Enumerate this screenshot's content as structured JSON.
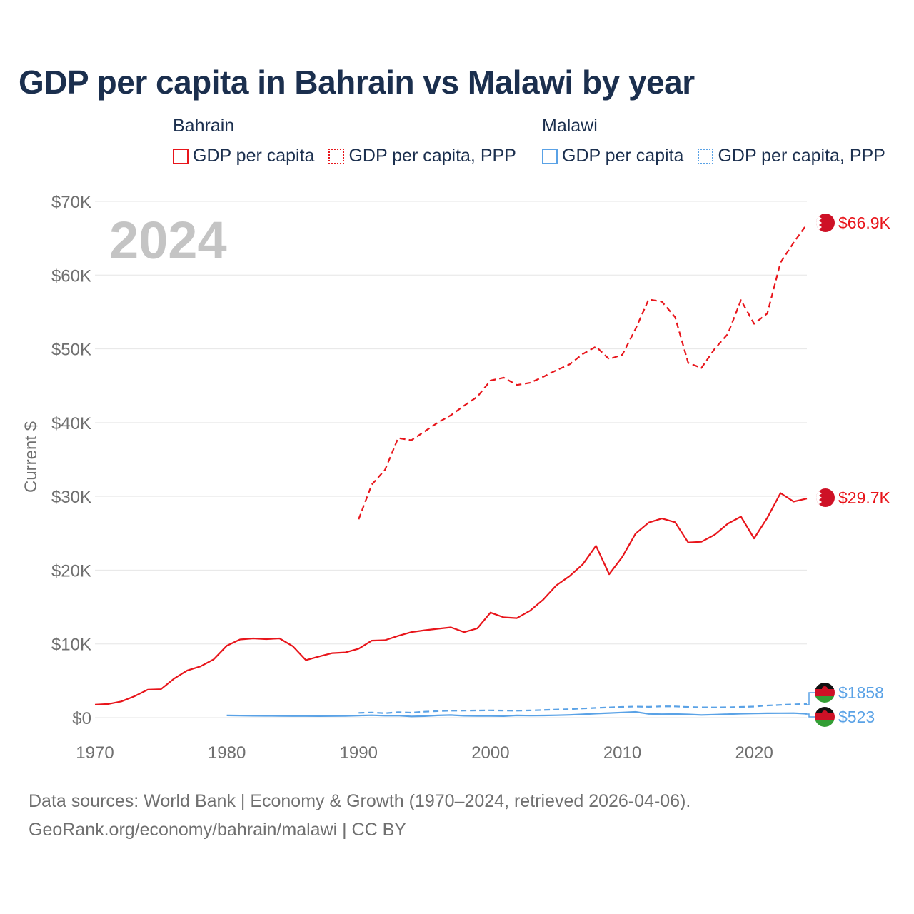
{
  "title": "GDP per capita in Bahrain vs Malawi by year",
  "legend": {
    "groups": [
      {
        "name": "Bahrain",
        "color": "#e8151b",
        "items": [
          {
            "label": "GDP per capita",
            "style": "solid"
          },
          {
            "label": "GDP per capita, PPP",
            "style": "dotted"
          }
        ]
      },
      {
        "name": "Malawi",
        "color": "#5aa2e6",
        "items": [
          {
            "label": "GDP per capita",
            "style": "solid"
          },
          {
            "label": "GDP per capita, PPP",
            "style": "dotted"
          }
        ]
      }
    ]
  },
  "footer": {
    "line1": "Data sources: World Bank | Economy & Growth (1970–2024, retrieved 2026-04-06).",
    "line2": "GeoRank.org/economy/bahrain/malawi | CC BY"
  },
  "chart_data": {
    "type": "line",
    "title": "GDP per capita in Bahrain vs Malawi by year",
    "year_label": "2024",
    "xlabel": "",
    "ylabel": "Current $",
    "xlim": [
      1970,
      2024
    ],
    "ylim": [
      0,
      70000
    ],
    "xticks": [
      "1970",
      "1980",
      "1990",
      "2000",
      "2010",
      "2020"
    ],
    "yticks": [
      "$0",
      "$10K",
      "$20K",
      "$30K",
      "$40K",
      "$50K",
      "$60K",
      "$70K"
    ],
    "series": [
      {
        "name": "Bahrain GDP per capita",
        "color": "#e8151b",
        "dash": "solid",
        "start": 1970,
        "values": [
          1750,
          1850,
          2200,
          2900,
          3800,
          3850,
          5300,
          6400,
          6950,
          7900,
          9750,
          10600,
          10750,
          10650,
          10750,
          9700,
          7800,
          8300,
          8750,
          8850,
          9350,
          10450,
          10500,
          11100,
          11600,
          11850,
          12050,
          12250,
          11600,
          12100,
          14250,
          13600,
          13500,
          14500,
          16000,
          17950,
          19200,
          20800,
          23300,
          19450,
          21800,
          24950,
          26450,
          27000,
          26500,
          23750,
          23850,
          24800,
          26300,
          27250,
          24300,
          27100,
          30450,
          29300,
          29700
        ],
        "end_label": "$29.7K",
        "flag": "bahrain"
      },
      {
        "name": "Bahrain GDP per capita, PPP",
        "color": "#e8151b",
        "dash": "dashed",
        "start": 1990,
        "values": [
          26900,
          31600,
          33600,
          37900,
          37600,
          38800,
          40000,
          41000,
          42300,
          43500,
          45700,
          46100,
          45100,
          45400,
          46200,
          47100,
          47900,
          49300,
          50300,
          48600,
          49200,
          52700,
          56700,
          56400,
          54300,
          48100,
          47400,
          50000,
          52000,
          56600,
          53400,
          54800,
          61700,
          64400,
          66900
        ],
        "end_label": "$66.9K",
        "flag": "bahrain"
      },
      {
        "name": "Malawi GDP per capita",
        "color": "#5aa2e6",
        "dash": "solid",
        "start": 1980,
        "values": [
          300,
          280,
          250,
          240,
          230,
          210,
          210,
          200,
          210,
          230,
          280,
          320,
          260,
          280,
          160,
          200,
          300,
          350,
          250,
          230,
          230,
          200,
          300,
          270,
          290,
          320,
          370,
          450,
          540,
          620,
          700,
          770,
          500,
          460,
          480,
          440,
          360,
          410,
          460,
          530,
          560,
          590,
          600,
          610,
          523
        ],
        "end_label": "$523",
        "flag": "malawi"
      },
      {
        "name": "Malawi GDP per capita, PPP",
        "color": "#5aa2e6",
        "dash": "dashed",
        "start": 1990,
        "values": [
          650,
          700,
          600,
          750,
          680,
          800,
          880,
          940,
          950,
          970,
          990,
          960,
          940,
          980,
          1040,
          1090,
          1140,
          1240,
          1320,
          1380,
          1450,
          1500,
          1460,
          1530,
          1520,
          1440,
          1390,
          1380,
          1400,
          1450,
          1500,
          1650,
          1720,
          1800,
          1858
        ],
        "end_label": "$1858",
        "flag": "malawi"
      }
    ]
  }
}
